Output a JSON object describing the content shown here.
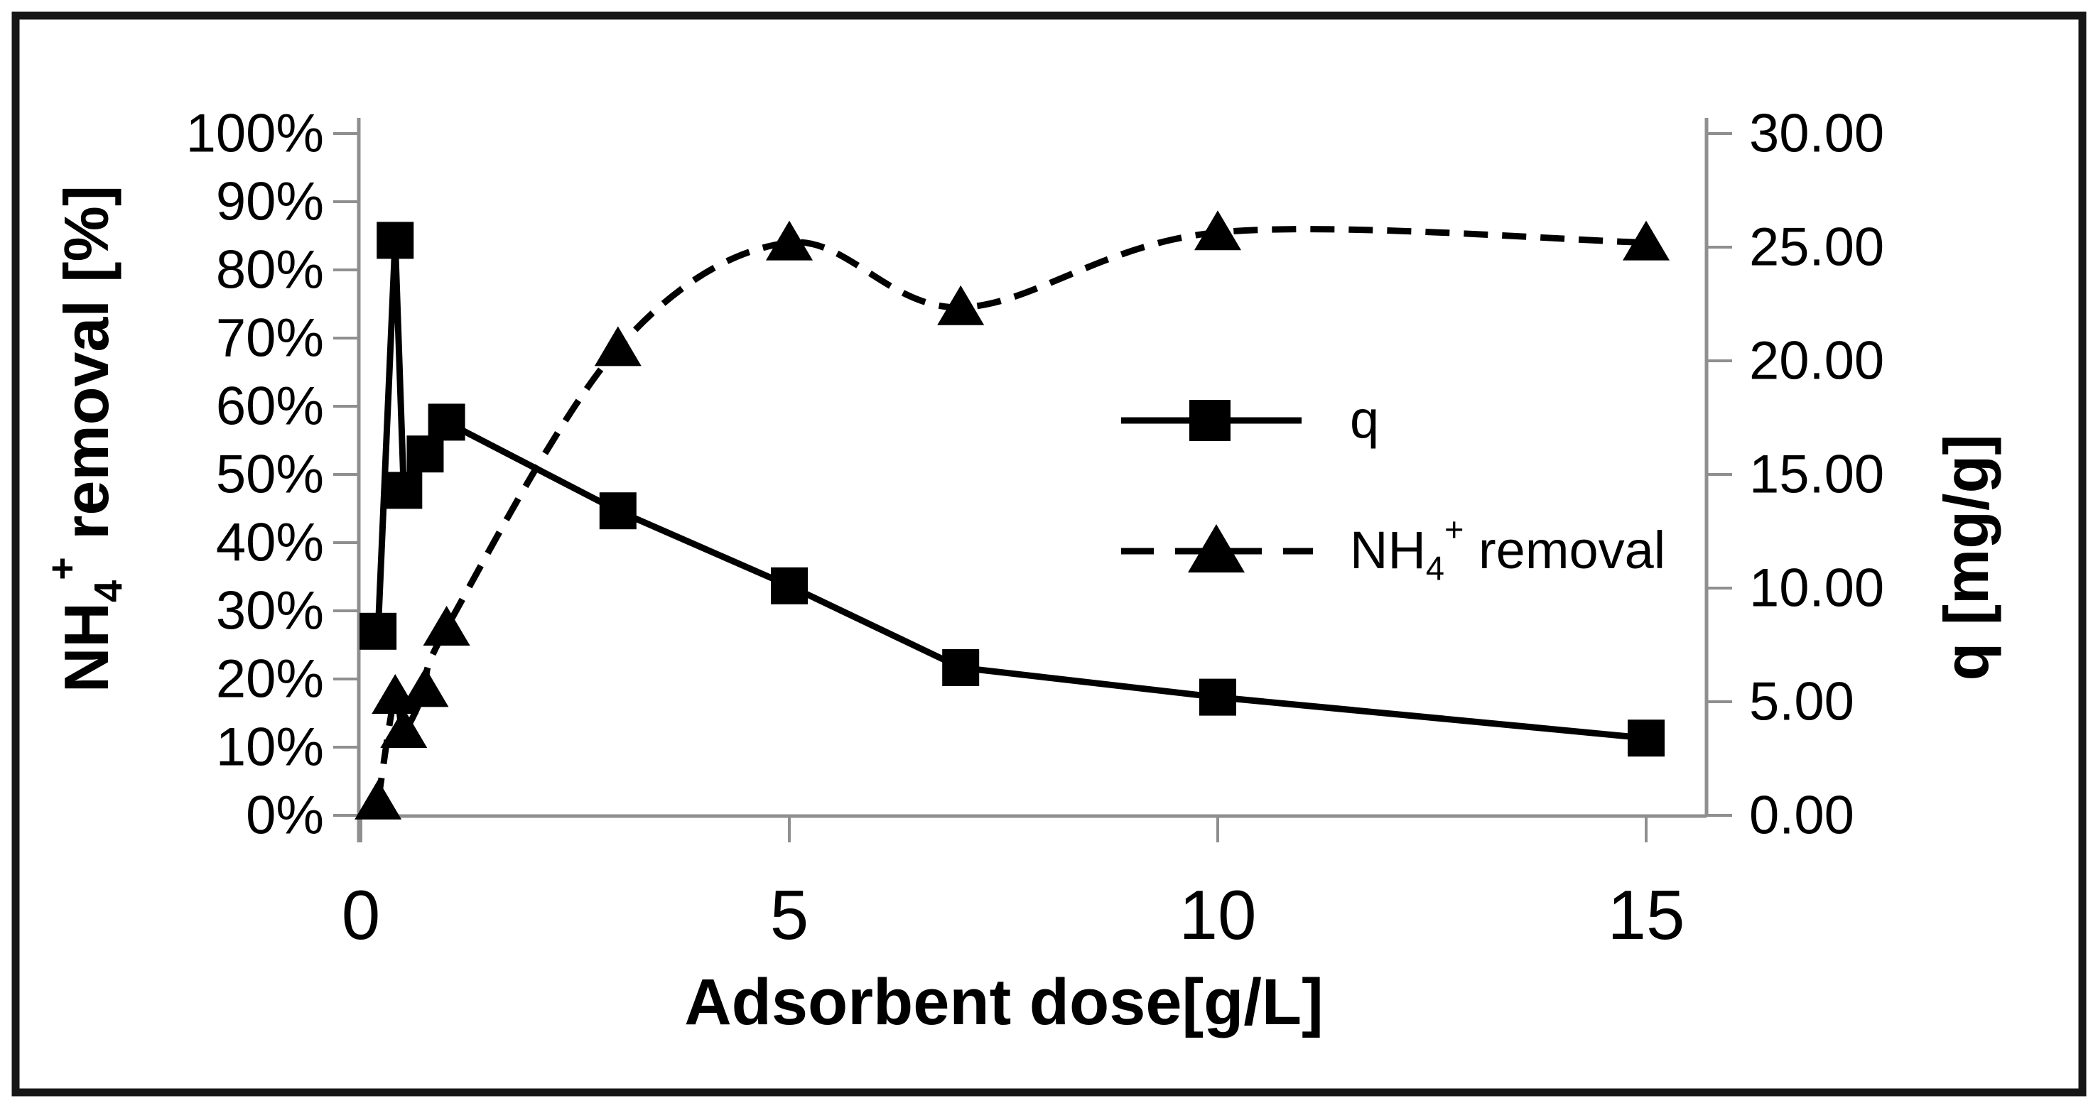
{
  "colors": {
    "data": "#000000",
    "axis": "#8f8f8f",
    "border": "#161616",
    "background": "#ffffff",
    "text": "#000000"
  },
  "chart_data": {
    "type": "line",
    "title": "",
    "xlabel": "Adsorbent dose[g/L]",
    "ylabel_left": "NH4+ removal [%]",
    "ylabel_left_parts": [
      {
        "t": "NH",
        "s": "main"
      },
      {
        "t": "4",
        "s": "sub"
      },
      {
        "t": "+",
        "s": "sup"
      },
      {
        "t": " removal [%]",
        "s": "main"
      }
    ],
    "ylabel_right": "q [mg/g]",
    "x_axis": {
      "range": [
        0,
        15.7
      ],
      "ticks": [
        {
          "value": 0,
          "label": "0"
        },
        {
          "value": 5,
          "label": "5"
        },
        {
          "value": 10,
          "label": "10"
        },
        {
          "value": 15,
          "label": "15"
        }
      ]
    },
    "left_axis": {
      "range": [
        0,
        100
      ],
      "unit": "%",
      "ticks": [
        {
          "value": 100,
          "label": "100%"
        },
        {
          "value": 90,
          "label": "90%"
        },
        {
          "value": 80,
          "label": "80%"
        },
        {
          "value": 70,
          "label": "70%"
        },
        {
          "value": 60,
          "label": "60%"
        },
        {
          "value": 50,
          "label": "50%"
        },
        {
          "value": 40,
          "label": "40%"
        },
        {
          "value": 30,
          "label": "30%"
        },
        {
          "value": 20,
          "label": "20%"
        },
        {
          "value": 10,
          "label": "10%"
        },
        {
          "value": 0,
          "label": "0%"
        }
      ]
    },
    "right_axis": {
      "range": [
        0,
        30
      ],
      "unit": "mg/g",
      "ticks": [
        {
          "value": 30,
          "label": "30.00"
        },
        {
          "value": 25,
          "label": "25.00"
        },
        {
          "value": 20,
          "label": "20.00"
        },
        {
          "value": 15,
          "label": "15.00"
        },
        {
          "value": 10,
          "label": "10.00"
        },
        {
          "value": 5,
          "label": "5.00"
        },
        {
          "value": 0,
          "label": "0.00"
        }
      ]
    },
    "grid": false,
    "legend_position": "center-right",
    "series": [
      {
        "name": "q",
        "axis": "right",
        "line": "solid",
        "marker": "square",
        "smoothed": false,
        "x": [
          0.2,
          0.4,
          0.5,
          0.75,
          1,
          3,
          5,
          7,
          10,
          15
        ],
        "values": [
          8.1,
          25.3,
          14.3,
          15.9,
          17.3,
          13.4,
          10.1,
          6.5,
          5.2,
          3.4
        ]
      },
      {
        "name": "NH4+ removal",
        "axis": "left",
        "line": "dashed",
        "marker": "triangle",
        "smoothed": true,
        "x": [
          0.2,
          0.4,
          0.5,
          0.75,
          1,
          3,
          5,
          7,
          10,
          15
        ],
        "values": [
          2,
          17.5,
          12.5,
          18.5,
          27.5,
          68.5,
          84,
          74.5,
          85.5,
          84
        ]
      }
    ],
    "legend": [
      {
        "label": "q",
        "label_parts": [
          {
            "t": "q",
            "s": "main"
          }
        ],
        "line": "solid",
        "marker": "square"
      },
      {
        "label": "NH4+ removal",
        "label_parts": [
          {
            "t": "NH",
            "s": "main"
          },
          {
            "t": "4",
            "s": "sub"
          },
          {
            "t": "+",
            "s": "sup"
          },
          {
            "t": " removal",
            "s": "main"
          }
        ],
        "line": "dashed",
        "marker": "triangle"
      }
    ]
  }
}
